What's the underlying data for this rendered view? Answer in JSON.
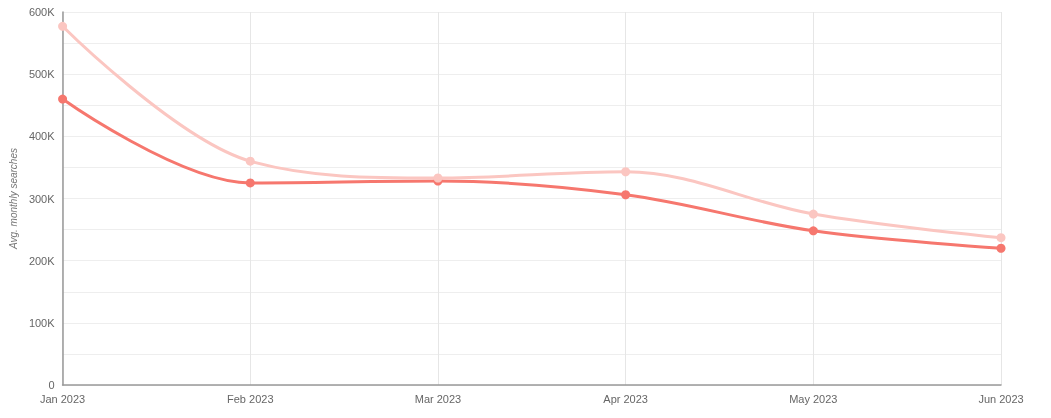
{
  "chart_data": {
    "type": "line",
    "ylabel": "Avg. monthly searches",
    "categories": [
      "Jan 2023",
      "Feb 2023",
      "Mar 2023",
      "Apr 2023",
      "May 2023",
      "Jun 2023"
    ],
    "series": [
      {
        "color": "#fbc6c1",
        "values": [
          577000,
          360000,
          333000,
          343000,
          275000,
          237000
        ]
      },
      {
        "color": "#f6776e",
        "values": [
          460000,
          325000,
          328000,
          306000,
          248000,
          220000
        ]
      }
    ],
    "ylim": [
      0,
      600000
    ],
    "yticks": [
      0,
      {
        "value": 50000,
        "label": null
      },
      {
        "value": 100000,
        "label": "100K"
      },
      {
        "value": 150000,
        "label": null
      },
      {
        "value": 200000,
        "label": "200K"
      },
      {
        "value": 250000,
        "label": null
      },
      {
        "value": 300000,
        "label": "300K"
      },
      {
        "value": 350000,
        "label": null
      },
      {
        "value": 400000,
        "label": "400K"
      },
      {
        "value": 450000,
        "label": null
      },
      {
        "value": 500000,
        "label": "500K"
      },
      {
        "value": 550000,
        "label": null
      },
      {
        "value": 600000,
        "label": "600K"
      }
    ],
    "grid": true,
    "marker": "circle",
    "line_style": "solid"
  }
}
